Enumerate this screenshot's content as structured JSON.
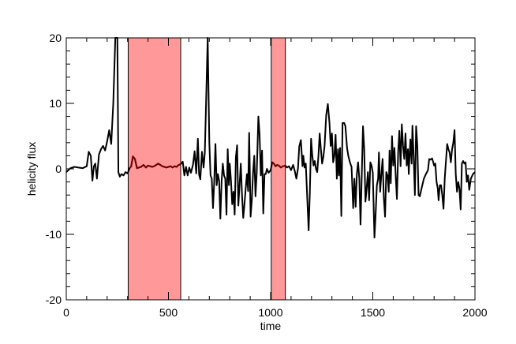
{
  "chart_data": {
    "type": "line",
    "title": "",
    "xlabel": "time",
    "ylabel": "helicity flux",
    "xlim": [
      0,
      2000
    ],
    "ylim": [
      -20,
      20
    ],
    "grid": false,
    "x_ticks": [
      0,
      500,
      1000,
      1500,
      2000
    ],
    "y_ticks": [
      -20,
      -10,
      0,
      10,
      20
    ],
    "line_color": "#000000",
    "highlight_line_color": "#7a0000",
    "highlight_fill": "#ff9999",
    "highlight_regions": [
      {
        "start": 303,
        "end": 560
      },
      {
        "start": 1003,
        "end": 1072
      }
    ],
    "series": [
      {
        "values": [
          [
            0,
            -0.5
          ],
          [
            20,
            0.1
          ],
          [
            40,
            0.3
          ],
          [
            60,
            0.2
          ],
          [
            80,
            0.1
          ],
          [
            100,
            0.4
          ],
          [
            110,
            2.6
          ],
          [
            120,
            2.0
          ],
          [
            128,
            -1.8
          ],
          [
            135,
            0.4
          ],
          [
            142,
            0.8
          ],
          [
            150,
            -1.5
          ],
          [
            160,
            2.2
          ],
          [
            170,
            3.0
          ],
          [
            180,
            3.5
          ],
          [
            190,
            2.8
          ],
          [
            200,
            4.2
          ],
          [
            210,
            5.9
          ],
          [
            220,
            3.8
          ],
          [
            230,
            10.0
          ],
          [
            240,
            20
          ],
          [
            250,
            20
          ],
          [
            255,
            -0.5
          ],
          [
            262,
            -1.2
          ],
          [
            270,
            -0.8
          ],
          [
            280,
            -1.0
          ],
          [
            290,
            -0.5
          ],
          [
            300,
            -0.7
          ],
          [
            310,
            0.1
          ],
          [
            318,
            0.4
          ],
          [
            326,
            1.9
          ],
          [
            336,
            1.5
          ],
          [
            346,
            0.1
          ],
          [
            356,
            0.2
          ],
          [
            366,
            0.3
          ],
          [
            378,
            0.6
          ],
          [
            390,
            0.2
          ],
          [
            400,
            0.5
          ],
          [
            410,
            0.4
          ],
          [
            420,
            0.3
          ],
          [
            430,
            0.4
          ],
          [
            440,
            0.6
          ],
          [
            450,
            0.8
          ],
          [
            460,
            0.6
          ],
          [
            470,
            0.4
          ],
          [
            480,
            0.3
          ],
          [
            490,
            0.2
          ],
          [
            500,
            0.3
          ],
          [
            510,
            0.4
          ],
          [
            520,
            0.2
          ],
          [
            530,
            0.4
          ],
          [
            540,
            0.3
          ],
          [
            550,
            0.6
          ],
          [
            560,
            0.7
          ],
          [
            570,
            1.1
          ],
          [
            578,
            -1.0
          ],
          [
            586,
            0.3
          ],
          [
            594,
            -1.0
          ],
          [
            602,
            0.2
          ],
          [
            610,
            -0.6
          ],
          [
            620,
            0.6
          ],
          [
            628,
            2.7
          ],
          [
            636,
            -0.7
          ],
          [
            644,
            4.6
          ],
          [
            650,
            -0.9
          ],
          [
            656,
            -1.6
          ],
          [
            664,
            2.6
          ],
          [
            672,
            0.2
          ],
          [
            678,
            2.5
          ],
          [
            685,
            11.2
          ],
          [
            692,
            20
          ],
          [
            700,
            4.0
          ],
          [
            706,
            -1.0
          ],
          [
            712,
            -1.5
          ],
          [
            718,
            -6.0
          ],
          [
            724,
            -2.0
          ],
          [
            730,
            3.8
          ],
          [
            736,
            -2.5
          ],
          [
            742,
            -0.8
          ],
          [
            748,
            -1.8
          ],
          [
            754,
            -7.6
          ],
          [
            760,
            -2.0
          ],
          [
            766,
            0.8
          ],
          [
            772,
            -1.0
          ],
          [
            778,
            -1.5
          ],
          [
            784,
            -7.0
          ],
          [
            790,
            3.0
          ],
          [
            796,
            -2.5
          ],
          [
            800,
            0.8
          ],
          [
            806,
            -1.8
          ],
          [
            812,
            -5.4
          ],
          [
            818,
            -3.5
          ],
          [
            824,
            -7.0
          ],
          [
            830,
            1.8
          ],
          [
            836,
            3.6
          ],
          [
            842,
            -5.6
          ],
          [
            848,
            -2.5
          ],
          [
            854,
            0.8
          ],
          [
            860,
            -4.0
          ],
          [
            866,
            -7.5
          ],
          [
            872,
            -5.4
          ],
          [
            878,
            -3.0
          ],
          [
            884,
            -0.8
          ],
          [
            890,
            -3.4
          ],
          [
            895,
            5.5
          ],
          [
            902,
            -7.3
          ],
          [
            908,
            -4.8
          ],
          [
            914,
            -0.6
          ],
          [
            920,
            2.0
          ],
          [
            926,
            -4.2
          ],
          [
            932,
            -0.6
          ],
          [
            936,
            3.5
          ],
          [
            940,
            8.0
          ],
          [
            946,
            5.2
          ],
          [
            952,
            -1.0
          ],
          [
            958,
            2.8
          ],
          [
            964,
            -6.8
          ],
          [
            970,
            -0.8
          ],
          [
            976,
            -0.8
          ],
          [
            982,
            0.0
          ],
          [
            990,
            -0.6
          ],
          [
            1000,
            -0.2
          ],
          [
            1008,
            1.0
          ],
          [
            1016,
            0.8
          ],
          [
            1024,
            0.4
          ],
          [
            1032,
            0.6
          ],
          [
            1040,
            0.5
          ],
          [
            1050,
            0.2
          ],
          [
            1060,
            0.4
          ],
          [
            1072,
            0.5
          ],
          [
            1080,
            0.2
          ],
          [
            1090,
            0.4
          ],
          [
            1100,
            -0.2
          ],
          [
            1110,
            0.6
          ],
          [
            1118,
            -0.3
          ],
          [
            1126,
            -1.5
          ],
          [
            1134,
            0.1
          ],
          [
            1140,
            3.4
          ],
          [
            1148,
            4.4
          ],
          [
            1156,
            0.4
          ],
          [
            1160,
            2.0
          ],
          [
            1166,
            0.2
          ],
          [
            1172,
            0.8
          ],
          [
            1180,
            -5.0
          ],
          [
            1186,
            -9.4
          ],
          [
            1192,
            -3.5
          ],
          [
            1198,
            4.6
          ],
          [
            1204,
            2.0
          ],
          [
            1210,
            0.5
          ],
          [
            1216,
            1.2
          ],
          [
            1222,
            0.0
          ],
          [
            1228,
            -0.5
          ],
          [
            1234,
            2.0
          ],
          [
            1240,
            5.4
          ],
          [
            1246,
            3.0
          ],
          [
            1252,
            0.8
          ],
          [
            1258,
            1.8
          ],
          [
            1264,
            3.5
          ],
          [
            1272,
            8.2
          ],
          [
            1280,
            9.9
          ],
          [
            1288,
            7.0
          ],
          [
            1294,
            3.5
          ],
          [
            1300,
            5.4
          ],
          [
            1306,
            1.0
          ],
          [
            1312,
            2.0
          ],
          [
            1318,
            5.2
          ],
          [
            1324,
            -1.5
          ],
          [
            1330,
            3.0
          ],
          [
            1334,
            -1.0
          ],
          [
            1340,
            3.2
          ],
          [
            1346,
            -7.2
          ],
          [
            1352,
            7.0
          ],
          [
            1360,
            7.0
          ],
          [
            1366,
            6.5
          ],
          [
            1374,
            3.2
          ],
          [
            1380,
            2.0
          ],
          [
            1388,
            1.0
          ],
          [
            1396,
            0.3
          ],
          [
            1404,
            -6.0
          ],
          [
            1410,
            -1.5
          ],
          [
            1416,
            -5.8
          ],
          [
            1422,
            -0.8
          ],
          [
            1428,
            1.0
          ],
          [
            1434,
            -1.5
          ],
          [
            1440,
            -8.5
          ],
          [
            1446,
            -1.0
          ],
          [
            1452,
            6.5
          ],
          [
            1458,
            3.0
          ],
          [
            1464,
            -5.0
          ],
          [
            1470,
            -3.0
          ],
          [
            1476,
            -0.5
          ],
          [
            1482,
            -4.8
          ],
          [
            1488,
            1.0
          ],
          [
            1494,
            0.5
          ],
          [
            1500,
            -0.6
          ],
          [
            1508,
            -10.5
          ],
          [
            1514,
            -6.8
          ],
          [
            1520,
            -2.5
          ],
          [
            1526,
            -1.5
          ],
          [
            1530,
            2.5
          ],
          [
            1536,
            -3.5
          ],
          [
            1542,
            -0.8
          ],
          [
            1548,
            1.5
          ],
          [
            1554,
            -4.5
          ],
          [
            1560,
            -7.3
          ],
          [
            1566,
            -0.5
          ],
          [
            1572,
            -1.0
          ],
          [
            1578,
            -3.5
          ],
          [
            1582,
            2.8
          ],
          [
            1588,
            -2.2
          ],
          [
            1594,
            5.0
          ],
          [
            1600,
            0.5
          ],
          [
            1606,
            3.2
          ],
          [
            1612,
            -1.0
          ],
          [
            1618,
            -4.6
          ],
          [
            1624,
            2.5
          ],
          [
            1630,
            5.8
          ],
          [
            1636,
            0.4
          ],
          [
            1642,
            6.8
          ],
          [
            1648,
            3.5
          ],
          [
            1654,
            1.5
          ],
          [
            1660,
            5.4
          ],
          [
            1666,
            0.5
          ],
          [
            1672,
            3.0
          ],
          [
            1676,
            -0.8
          ],
          [
            1680,
            2.0
          ],
          [
            1684,
            4.5
          ],
          [
            1690,
            0.8
          ],
          [
            1694,
            6.6
          ],
          [
            1700,
            1.8
          ],
          [
            1706,
            -4.0
          ],
          [
            1712,
            6.5
          ],
          [
            1718,
            3.5
          ],
          [
            1724,
            -4.0
          ],
          [
            1730,
            -4.2
          ],
          [
            1740,
            -2.8
          ],
          [
            1750,
            -1.5
          ],
          [
            1760,
            -0.8
          ],
          [
            1770,
            -0.2
          ],
          [
            1776,
            1.5
          ],
          [
            1782,
            1.4
          ],
          [
            1790,
            1.6
          ],
          [
            1796,
            1.0
          ],
          [
            1800,
            0.5
          ],
          [
            1806,
            0.8
          ],
          [
            1812,
            -2.0
          ],
          [
            1818,
            -3.0
          ],
          [
            1822,
            -4.8
          ],
          [
            1828,
            -2.5
          ],
          [
            1834,
            -2.5
          ],
          [
            1840,
            -4.0
          ],
          [
            1846,
            -6.1
          ],
          [
            1852,
            -1.5
          ],
          [
            1858,
            1.2
          ],
          [
            1864,
            3.8
          ],
          [
            1870,
            3.0
          ],
          [
            1876,
            2.5
          ],
          [
            1882,
            1.0
          ],
          [
            1888,
            3.0
          ],
          [
            1894,
            4.0
          ],
          [
            1900,
            5.9
          ],
          [
            1906,
            -0.8
          ],
          [
            1912,
            -3.5
          ],
          [
            1918,
            -2.0
          ],
          [
            1924,
            -3.0
          ],
          [
            1930,
            -6.2
          ],
          [
            1936,
            0.8
          ],
          [
            1942,
            1.2
          ],
          [
            1948,
            0.8
          ],
          [
            1954,
            1.0
          ],
          [
            1960,
            -2.0
          ],
          [
            1966,
            -1.0
          ],
          [
            1972,
            -3.2
          ],
          [
            1980,
            -1.5
          ],
          [
            1990,
            -0.8
          ],
          [
            2000,
            -0.5
          ]
        ]
      }
    ]
  }
}
